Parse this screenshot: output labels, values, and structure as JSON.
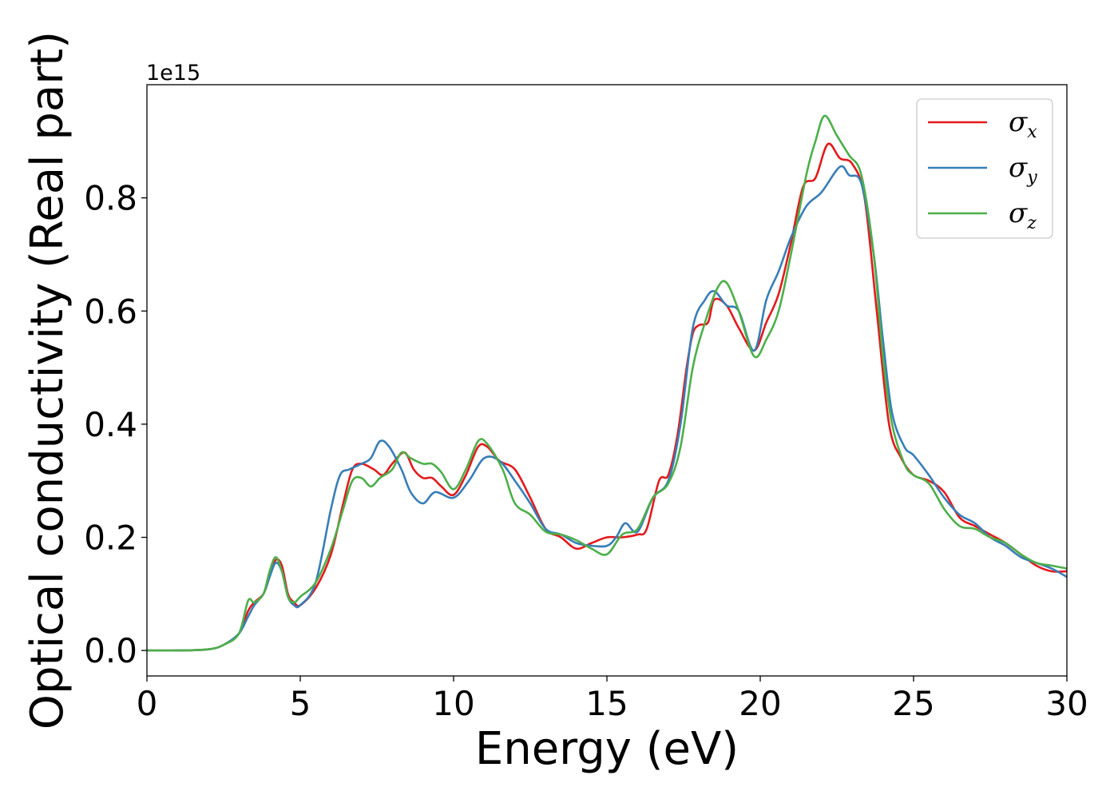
{
  "chart_data": {
    "type": "line",
    "xlabel": "Energy (eV)",
    "ylabel": "Optical conductivity (Real part)",
    "y_offset_text": "1e15",
    "xlim": [
      0,
      30
    ],
    "ylim": [
      -0.045,
      1.0
    ],
    "grid": false,
    "legend_position": "top-right",
    "xticks": [
      0,
      5,
      10,
      15,
      20,
      25,
      30
    ],
    "xtick_labels": [
      "0",
      "5",
      "10",
      "15",
      "20",
      "25",
      "30"
    ],
    "yticks": [
      0.0,
      0.2,
      0.4,
      0.6,
      0.8
    ],
    "ytick_labels": [
      "0.0",
      "0.2",
      "0.4",
      "0.6",
      "0.8"
    ],
    "series": [
      {
        "name": "σx",
        "symbol": "σ",
        "subscript": "x",
        "color": "#e41a1c",
        "points": [
          [
            0,
            0
          ],
          [
            1,
            0
          ],
          [
            2,
            0.002
          ],
          [
            2.5,
            0.01
          ],
          [
            3,
            0.03
          ],
          [
            3.3,
            0.07
          ],
          [
            3.5,
            0.085
          ],
          [
            3.8,
            0.1
          ],
          [
            4,
            0.13
          ],
          [
            4.2,
            0.16
          ],
          [
            4.4,
            0.15
          ],
          [
            4.6,
            0.1
          ],
          [
            4.8,
            0.085
          ],
          [
            5,
            0.08
          ],
          [
            5.5,
            0.11
          ],
          [
            6,
            0.17
          ],
          [
            6.4,
            0.26
          ],
          [
            6.7,
            0.32
          ],
          [
            7,
            0.33
          ],
          [
            7.4,
            0.32
          ],
          [
            7.7,
            0.31
          ],
          [
            8,
            0.33
          ],
          [
            8.4,
            0.35
          ],
          [
            8.7,
            0.32
          ],
          [
            9,
            0.305
          ],
          [
            9.3,
            0.305
          ],
          [
            9.6,
            0.29
          ],
          [
            10,
            0.275
          ],
          [
            10.4,
            0.31
          ],
          [
            10.8,
            0.36
          ],
          [
            11.1,
            0.36
          ],
          [
            11.5,
            0.335
          ],
          [
            12,
            0.32
          ],
          [
            12.5,
            0.27
          ],
          [
            13,
            0.215
          ],
          [
            13.5,
            0.2
          ],
          [
            14,
            0.18
          ],
          [
            14.5,
            0.19
          ],
          [
            15,
            0.2
          ],
          [
            15.5,
            0.2
          ],
          [
            16,
            0.205
          ],
          [
            16.3,
            0.215
          ],
          [
            16.7,
            0.3
          ],
          [
            17,
            0.31
          ],
          [
            17.3,
            0.38
          ],
          [
            17.6,
            0.5
          ],
          [
            17.8,
            0.56
          ],
          [
            18,
            0.575
          ],
          [
            18.3,
            0.58
          ],
          [
            18.5,
            0.62
          ],
          [
            18.9,
            0.61
          ],
          [
            19.3,
            0.57
          ],
          [
            19.8,
            0.53
          ],
          [
            20.2,
            0.58
          ],
          [
            20.6,
            0.63
          ],
          [
            21,
            0.72
          ],
          [
            21.4,
            0.82
          ],
          [
            21.8,
            0.835
          ],
          [
            22.2,
            0.895
          ],
          [
            22.6,
            0.87
          ],
          [
            23,
            0.86
          ],
          [
            23.4,
            0.8
          ],
          [
            23.8,
            0.6
          ],
          [
            24.2,
            0.4
          ],
          [
            24.6,
            0.34
          ],
          [
            25,
            0.31
          ],
          [
            25.5,
            0.3
          ],
          [
            26,
            0.28
          ],
          [
            26.5,
            0.235
          ],
          [
            27,
            0.22
          ],
          [
            27.5,
            0.205
          ],
          [
            28,
            0.19
          ],
          [
            28.5,
            0.17
          ],
          [
            29,
            0.15
          ],
          [
            29.5,
            0.14
          ],
          [
            30,
            0.14
          ]
        ]
      },
      {
        "name": "σy",
        "symbol": "σ",
        "subscript": "y",
        "color": "#377eb8",
        "points": [
          [
            0,
            0
          ],
          [
            1,
            0
          ],
          [
            2,
            0.002
          ],
          [
            2.5,
            0.01
          ],
          [
            3,
            0.03
          ],
          [
            3.3,
            0.06
          ],
          [
            3.5,
            0.08
          ],
          [
            3.8,
            0.1
          ],
          [
            4,
            0.13
          ],
          [
            4.2,
            0.155
          ],
          [
            4.4,
            0.14
          ],
          [
            4.6,
            0.095
          ],
          [
            4.8,
            0.08
          ],
          [
            5,
            0.08
          ],
          [
            5.5,
            0.12
          ],
          [
            6,
            0.25
          ],
          [
            6.3,
            0.31
          ],
          [
            6.6,
            0.32
          ],
          [
            7,
            0.33
          ],
          [
            7.3,
            0.34
          ],
          [
            7.6,
            0.37
          ],
          [
            7.9,
            0.36
          ],
          [
            8.3,
            0.32
          ],
          [
            8.6,
            0.28
          ],
          [
            9,
            0.26
          ],
          [
            9.4,
            0.28
          ],
          [
            10,
            0.27
          ],
          [
            10.5,
            0.3
          ],
          [
            11,
            0.34
          ],
          [
            11.5,
            0.335
          ],
          [
            12,
            0.3
          ],
          [
            12.5,
            0.26
          ],
          [
            13,
            0.215
          ],
          [
            13.5,
            0.205
          ],
          [
            14,
            0.19
          ],
          [
            14.5,
            0.185
          ],
          [
            15,
            0.185
          ],
          [
            15.3,
            0.2
          ],
          [
            15.6,
            0.225
          ],
          [
            16,
            0.21
          ],
          [
            16.5,
            0.27
          ],
          [
            17,
            0.3
          ],
          [
            17.4,
            0.4
          ],
          [
            17.8,
            0.57
          ],
          [
            18.2,
            0.62
          ],
          [
            18.5,
            0.635
          ],
          [
            18.9,
            0.61
          ],
          [
            19.3,
            0.6
          ],
          [
            19.8,
            0.53
          ],
          [
            20.2,
            0.62
          ],
          [
            20.6,
            0.67
          ],
          [
            21,
            0.73
          ],
          [
            21.5,
            0.785
          ],
          [
            22,
            0.81
          ],
          [
            22.6,
            0.855
          ],
          [
            22.9,
            0.84
          ],
          [
            23.3,
            0.825
          ],
          [
            23.7,
            0.7
          ],
          [
            24,
            0.55
          ],
          [
            24.3,
            0.42
          ],
          [
            24.7,
            0.36
          ],
          [
            25,
            0.345
          ],
          [
            25.5,
            0.31
          ],
          [
            26,
            0.27
          ],
          [
            26.5,
            0.24
          ],
          [
            27,
            0.225
          ],
          [
            27.5,
            0.2
          ],
          [
            28,
            0.185
          ],
          [
            28.5,
            0.165
          ],
          [
            29,
            0.155
          ],
          [
            29.5,
            0.145
          ],
          [
            30,
            0.13
          ]
        ]
      },
      {
        "name": "σz",
        "symbol": "σ",
        "subscript": "z",
        "color": "#4daf4a",
        "points": [
          [
            0,
            0
          ],
          [
            1,
            0
          ],
          [
            2,
            0.002
          ],
          [
            2.5,
            0.01
          ],
          [
            3,
            0.03
          ],
          [
            3.3,
            0.088
          ],
          [
            3.5,
            0.085
          ],
          [
            3.8,
            0.1
          ],
          [
            4,
            0.14
          ],
          [
            4.2,
            0.165
          ],
          [
            4.4,
            0.14
          ],
          [
            4.6,
            0.095
          ],
          [
            4.8,
            0.085
          ],
          [
            5,
            0.095
          ],
          [
            5.5,
            0.12
          ],
          [
            6,
            0.18
          ],
          [
            6.4,
            0.25
          ],
          [
            6.7,
            0.3
          ],
          [
            7,
            0.305
          ],
          [
            7.3,
            0.29
          ],
          [
            7.6,
            0.305
          ],
          [
            8,
            0.32
          ],
          [
            8.3,
            0.35
          ],
          [
            8.6,
            0.34
          ],
          [
            9,
            0.33
          ],
          [
            9.3,
            0.33
          ],
          [
            9.6,
            0.315
          ],
          [
            10,
            0.285
          ],
          [
            10.4,
            0.32
          ],
          [
            10.8,
            0.37
          ],
          [
            11.1,
            0.365
          ],
          [
            11.6,
            0.32
          ],
          [
            12,
            0.26
          ],
          [
            12.5,
            0.24
          ],
          [
            13,
            0.21
          ],
          [
            13.5,
            0.205
          ],
          [
            14,
            0.195
          ],
          [
            14.5,
            0.18
          ],
          [
            15,
            0.17
          ],
          [
            15.5,
            0.205
          ],
          [
            16,
            0.215
          ],
          [
            16.5,
            0.27
          ],
          [
            17,
            0.295
          ],
          [
            17.4,
            0.36
          ],
          [
            17.8,
            0.5
          ],
          [
            18.2,
            0.58
          ],
          [
            18.6,
            0.64
          ],
          [
            18.9,
            0.65
          ],
          [
            19.3,
            0.6
          ],
          [
            19.8,
            0.52
          ],
          [
            20.2,
            0.55
          ],
          [
            20.6,
            0.6
          ],
          [
            21,
            0.7
          ],
          [
            21.5,
            0.84
          ],
          [
            21.8,
            0.9
          ],
          [
            22.1,
            0.945
          ],
          [
            22.5,
            0.91
          ],
          [
            22.9,
            0.875
          ],
          [
            23.3,
            0.84
          ],
          [
            23.7,
            0.7
          ],
          [
            24,
            0.52
          ],
          [
            24.3,
            0.4
          ],
          [
            24.7,
            0.33
          ],
          [
            25,
            0.31
          ],
          [
            25.5,
            0.295
          ],
          [
            26,
            0.25
          ],
          [
            26.5,
            0.22
          ],
          [
            27,
            0.215
          ],
          [
            27.5,
            0.2
          ],
          [
            28,
            0.19
          ],
          [
            28.5,
            0.17
          ],
          [
            29,
            0.155
          ],
          [
            29.5,
            0.15
          ],
          [
            30,
            0.145
          ]
        ]
      }
    ]
  }
}
